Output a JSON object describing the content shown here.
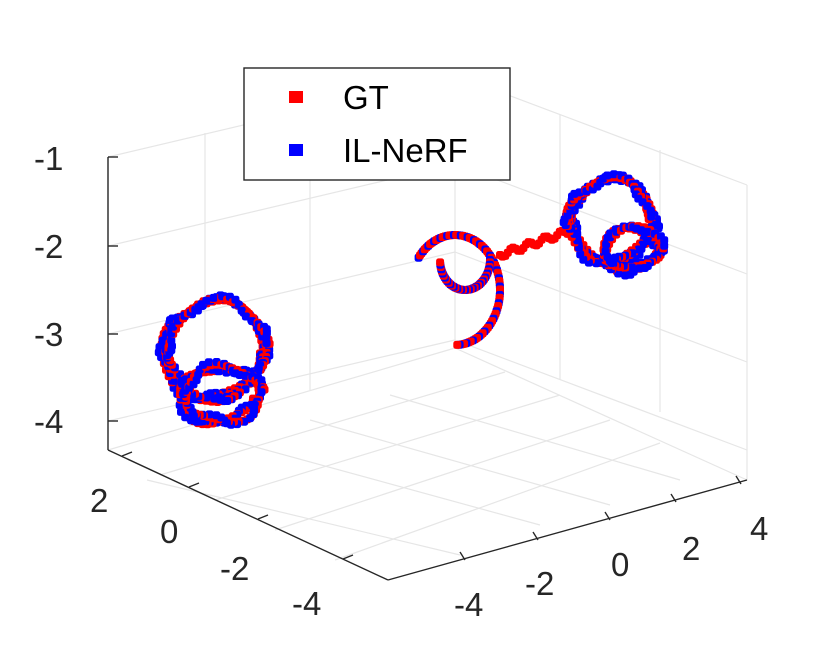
{
  "chart_data": {
    "type": "scatter",
    "subtype": "3d-scatter",
    "grid": true,
    "legend_position": "top-center",
    "axes": {
      "x_ticks": [
        "-4",
        "-2",
        "0",
        "2",
        "4"
      ],
      "y_ticks": [
        "-4",
        "-2",
        "0",
        "2"
      ],
      "z_ticks": [
        "-1",
        "-2",
        "-3",
        "-4"
      ],
      "xlim": [
        -5,
        5
      ],
      "ylim": [
        -5,
        3
      ],
      "zlim": [
        -4.3,
        -1
      ]
    },
    "series": [
      {
        "name": "GT",
        "color": "#ff0000",
        "marker": "square"
      },
      {
        "name": "IL-NeRF",
        "color": "#0000ff",
        "marker": "square"
      }
    ],
    "clusters": [
      {
        "label": "left-cluster",
        "shape": "coil"
      },
      {
        "label": "middle-hook",
        "shape": "hook"
      },
      {
        "label": "right-cluster",
        "shape": "coil"
      }
    ]
  }
}
